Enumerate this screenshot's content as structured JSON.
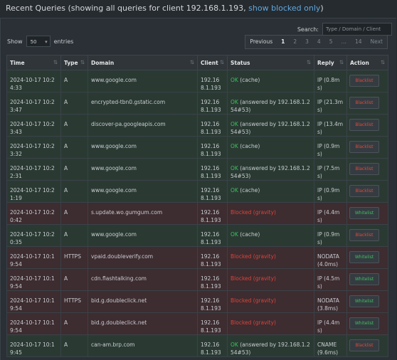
{
  "header": {
    "title": "Recent Queries (showing all queries for client 192.168.1.193,",
    "link": "show blocked only",
    "close": ")"
  },
  "controls": {
    "search_label": "Search:",
    "search_placeholder": "Type / Domain / Client",
    "show_label": "Show",
    "page_size": "50",
    "entries_label": "entries",
    "pagination": [
      "Previous",
      "1",
      "2",
      "3",
      "4",
      "5",
      "…",
      "14",
      "Next"
    ]
  },
  "table": {
    "columns": [
      "Time",
      "Type",
      "Domain",
      "Client",
      "Status",
      "Reply",
      "Action"
    ],
    "rows": [
      {
        "time": "2024-10-17 10:24:33",
        "type": "A",
        "domain": "www.google.com",
        "client": "192.168.1.193",
        "status": "OK",
        "detail": "(cache)",
        "reply": "IP (0.8ms)",
        "action": "Blacklist",
        "color": "#2a3a33",
        "status_color": "#3fbf5f",
        "action_color": "#e04a3a"
      },
      {
        "time": "2024-10-17 10:23:47",
        "type": "A",
        "domain": "encrypted-tbn0.gstatic.com",
        "client": "192.168.1.193",
        "status": "OK",
        "detail": "(answered by 192.168.1.254#53)",
        "reply": "IP (21.3ms)",
        "action": "Blacklist",
        "color": "#2a3a33",
        "status_color": "#3fbf5f",
        "action_color": "#e04a3a"
      },
      {
        "time": "2024-10-17 10:23:43",
        "type": "A",
        "domain": "discover-pa.googleapis.com",
        "client": "192.168.1.193",
        "status": "OK",
        "detail": "(answered by 192.168.1.254#53)",
        "reply": "IP (13.4ms)",
        "action": "Blacklist",
        "color": "#2a3a33",
        "status_color": "#3fbf5f",
        "action_color": "#e04a3a"
      },
      {
        "time": "2024-10-17 10:23:32",
        "type": "A",
        "domain": "www.google.com",
        "client": "192.168.1.193",
        "status": "OK",
        "detail": "(cache)",
        "reply": "IP (0.9ms)",
        "action": "Blacklist",
        "color": "#2a3a33",
        "status_color": "#3fbf5f",
        "action_color": "#e04a3a"
      },
      {
        "time": "2024-10-17 10:22:31",
        "type": "A",
        "domain": "www.google.com",
        "client": "192.168.1.193",
        "status": "OK",
        "detail": "(answered by 192.168.1.254#53)",
        "reply": "IP (7.5ms)",
        "action": "Blacklist",
        "color": "#2a3a33",
        "status_color": "#3fbf5f",
        "action_color": "#e04a3a"
      },
      {
        "time": "2024-10-17 10:21:19",
        "type": "A",
        "domain": "www.google.com",
        "client": "192.168.1.193",
        "status": "OK",
        "detail": "(cache)",
        "reply": "IP (0.9ms)",
        "action": "Blacklist",
        "color": "#2a3a33",
        "status_color": "#3fbf5f",
        "action_color": "#e04a3a"
      },
      {
        "time": "2024-10-17 10:20:42",
        "type": "A",
        "domain": "s.update.wo.gumgum.com",
        "client": "192.168.1.193",
        "status": "Blocked (gravity)",
        "detail": "",
        "reply": "IP (4.4ms)",
        "action": "Whitelist",
        "color": "#3d2c30",
        "status_color": "#d9453a",
        "action_color": "#3fbf5f"
      },
      {
        "time": "2024-10-17 10:20:35",
        "type": "A",
        "domain": "www.google.com",
        "client": "192.168.1.193",
        "status": "OK",
        "detail": "(cache)",
        "reply": "IP (0.9ms)",
        "action": "Blacklist",
        "color": "#2a3a33",
        "status_color": "#3fbf5f",
        "action_color": "#e04a3a"
      },
      {
        "time": "2024-10-17 10:19:54",
        "type": "HTTPS",
        "domain": "vpaid.doubleverify.com",
        "client": "192.168.1.193",
        "status": "Blocked (gravity)",
        "detail": "",
        "reply": "NODATA (4.0ms)",
        "action": "Whitelist",
        "color": "#3d2c30",
        "status_color": "#d9453a",
        "action_color": "#3fbf5f"
      },
      {
        "time": "2024-10-17 10:19:54",
        "type": "A",
        "domain": "cdn.flashtalking.com",
        "client": "192.168.1.193",
        "status": "Blocked (gravity)",
        "detail": "",
        "reply": "IP (4.5ms)",
        "action": "Whitelist",
        "color": "#3d2c30",
        "status_color": "#d9453a",
        "action_color": "#3fbf5f"
      },
      {
        "time": "2024-10-17 10:19:54",
        "type": "HTTPS",
        "domain": "bid.g.doubleclick.net",
        "client": "192.168.1.193",
        "status": "Blocked (gravity)",
        "detail": "",
        "reply": "NODATA (3.8ms)",
        "action": "Whitelist",
        "color": "#3d2c30",
        "status_color": "#d9453a",
        "action_color": "#3fbf5f"
      },
      {
        "time": "2024-10-17 10:19:54",
        "type": "A",
        "domain": "bid.g.doubleclick.net",
        "client": "192.168.1.193",
        "status": "Blocked (gravity)",
        "detail": "",
        "reply": "IP (4.4ms)",
        "action": "Whitelist",
        "color": "#3d2c30",
        "status_color": "#d9453a",
        "action_color": "#3fbf5f"
      },
      {
        "time": "2024-10-17 10:19:45",
        "type": "A",
        "domain": "can-am.brp.com",
        "client": "192.168.1.193",
        "status": "OK",
        "detail": "(answered by 192.168.1.254#53)",
        "reply": "CNAME (9.6ms)",
        "action": "Blacklist",
        "color": "#2a3a33",
        "status_color": "#3fbf5f",
        "action_color": "#e04a3a"
      }
    ]
  }
}
